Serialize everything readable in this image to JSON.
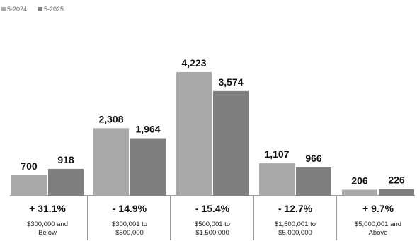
{
  "chart_data": {
    "type": "bar",
    "categories": [
      [
        "$300,000 and",
        "Below"
      ],
      [
        "$300,001 to",
        "$500,000"
      ],
      [
        "$500,001 to",
        "$1,500,000"
      ],
      [
        "$1,500,001 to",
        "$5,000,000"
      ],
      [
        "$5,000,001 and",
        "Above"
      ]
    ],
    "series": [
      {
        "name": "5-2024",
        "values": [
          700,
          2308,
          4223,
          1107,
          206
        ],
        "labels": [
          "700",
          "2,308",
          "4,223",
          "1,107",
          "206"
        ],
        "color": "#a9a9a9"
      },
      {
        "name": "5-2025",
        "values": [
          918,
          1964,
          3574,
          966,
          226
        ],
        "labels": [
          "918",
          "1,964",
          "3,574",
          "966",
          "226"
        ],
        "color": "#7f7f7f"
      }
    ],
    "changes": [
      "+ 31.1%",
      "- 14.9%",
      "- 15.4%",
      "- 12.7%",
      "+ 9.7%"
    ],
    "ylim": [
      0,
      4800
    ],
    "title": "",
    "xlabel": "",
    "ylabel": "",
    "grid": false,
    "legend": "top-left"
  }
}
